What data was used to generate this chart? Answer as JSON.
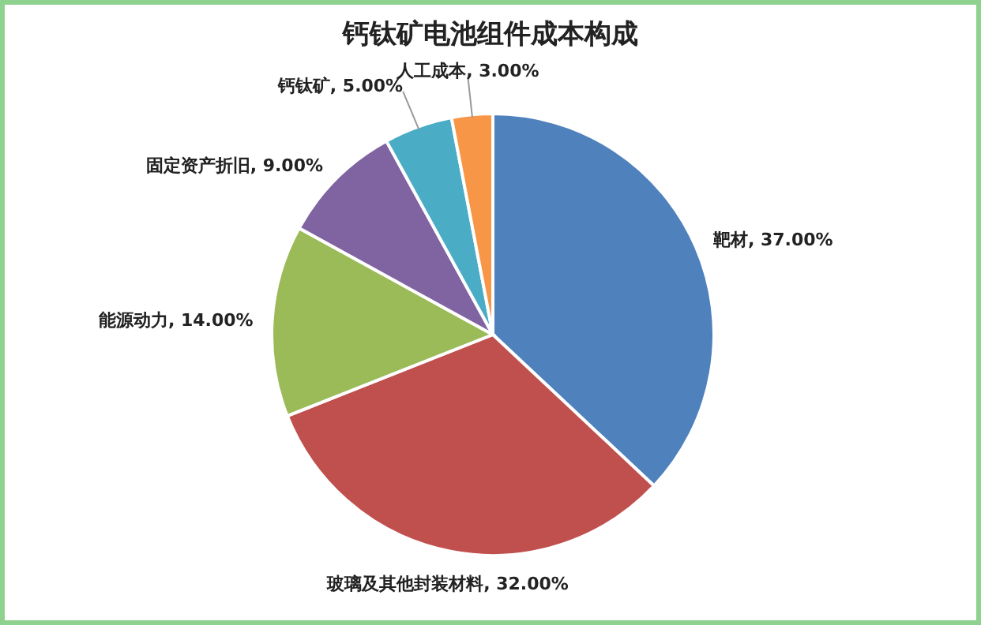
{
  "chart_data": {
    "type": "pie",
    "title": "钙钛矿电池组件成本构成",
    "categories": [
      "靶材",
      "玻璃及其他封装材料",
      "能源动力",
      "固定资产折旧",
      "钙钛矿",
      "人工成本"
    ],
    "values": [
      37,
      32,
      14,
      9,
      5,
      3
    ],
    "colors": [
      "#4f81bd",
      "#c0504d",
      "#9bbb59",
      "#8064a2",
      "#4bacc6",
      "#f79646"
    ],
    "value_labels": [
      "37.00%",
      "32.00%",
      "14.00%",
      "9.00%",
      "5.00%",
      "3.00%"
    ],
    "legend": false
  }
}
